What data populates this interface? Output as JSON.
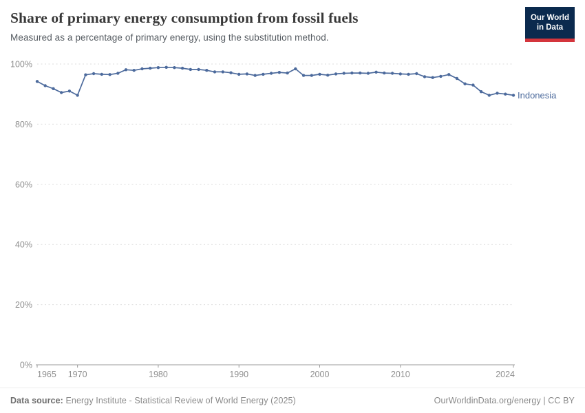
{
  "header": {
    "title": "Share of primary energy consumption from fossil fuels",
    "subtitle": "Measured as a percentage of primary energy, using the substitution method.",
    "logo": {
      "line1": "Our World",
      "line2": "in Data",
      "bg_color": "#0b2a4e",
      "accent_color": "#d4353c"
    }
  },
  "chart_data": {
    "type": "line",
    "title": "Share of primary energy consumption from fossil fuels",
    "xlabel": "",
    "ylabel": "",
    "xlim": [
      1965,
      2024
    ],
    "ylim": [
      0,
      100
    ],
    "grid": "horizontal-dashed",
    "legend_position": "end-of-line-label",
    "x_ticks": [
      1965,
      1970,
      1980,
      1990,
      2000,
      2010,
      2024
    ],
    "y_ticks": [
      0,
      20,
      40,
      60,
      80,
      100
    ],
    "y_tick_suffix": "%",
    "series": [
      {
        "name": "Indonesia",
        "color": "#4C6A9C",
        "x": [
          1965,
          1966,
          1967,
          1968,
          1969,
          1970,
          1971,
          1972,
          1973,
          1974,
          1975,
          1976,
          1977,
          1978,
          1979,
          1980,
          1981,
          1982,
          1983,
          1984,
          1985,
          1986,
          1987,
          1988,
          1989,
          1990,
          1991,
          1992,
          1993,
          1994,
          1995,
          1996,
          1997,
          1998,
          1999,
          2000,
          2001,
          2002,
          2003,
          2004,
          2005,
          2006,
          2007,
          2008,
          2009,
          2010,
          2011,
          2012,
          2013,
          2014,
          2015,
          2016,
          2017,
          2018,
          2019,
          2020,
          2021,
          2022,
          2023,
          2024
        ],
        "values": [
          94.2,
          92.8,
          91.8,
          90.5,
          91.0,
          89.6,
          96.4,
          96.8,
          96.6,
          96.5,
          96.9,
          98.1,
          97.9,
          98.4,
          98.6,
          98.8,
          98.9,
          98.8,
          98.6,
          98.2,
          98.2,
          97.9,
          97.4,
          97.4,
          97.1,
          96.6,
          96.7,
          96.2,
          96.6,
          96.9,
          97.2,
          97.0,
          98.4,
          96.2,
          96.2,
          96.6,
          96.3,
          96.7,
          96.9,
          97.0,
          97.0,
          96.9,
          97.3,
          97.0,
          96.9,
          96.7,
          96.6,
          96.8,
          95.8,
          95.5,
          95.9,
          96.5,
          95.2,
          93.4,
          93.0,
          90.8,
          89.6,
          90.3,
          90.0,
          89.6
        ]
      }
    ],
    "style": {
      "grid_color": "#dcdcdc",
      "axis_color": "#9b9b9b",
      "tick_label_color": "#8f8f8f",
      "marker_radius": 2.2,
      "line_width": 1.7
    }
  },
  "footer": {
    "source_label": "Data source:",
    "source_text": " Energy Institute - Statistical Review of World Energy (2025)",
    "credit": "OurWorldinData.org/energy | CC BY"
  }
}
